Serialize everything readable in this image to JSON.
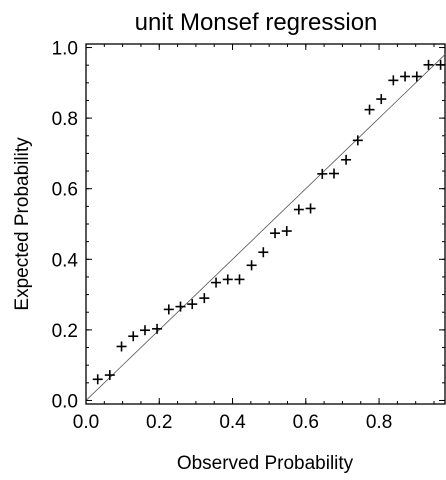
{
  "chart_data": {
    "type": "scatter",
    "title": "unit Monsef regression",
    "xlabel": "Observed Probability",
    "ylabel": "Expected Probability",
    "xlim": [
      0.0,
      0.98
    ],
    "ylim": [
      -0.01,
      1.01
    ],
    "xticks": [
      "0.0",
      "0.2",
      "0.4",
      "0.6",
      "0.8"
    ],
    "xtick_values": [
      0.0,
      0.2,
      0.4,
      0.6,
      0.8
    ],
    "yticks": [
      "0.0",
      "0.2",
      "0.4",
      "0.6",
      "0.8",
      "1.0"
    ],
    "ytick_values": [
      0.0,
      0.2,
      0.4,
      0.6,
      0.8,
      1.0
    ],
    "reference_line": [
      [
        0,
        0
      ],
      [
        1,
        1
      ]
    ],
    "marker": "plus",
    "grid": false,
    "legend": false,
    "points": [
      [
        0.032,
        0.06
      ],
      [
        0.065,
        0.072
      ],
      [
        0.097,
        0.153
      ],
      [
        0.129,
        0.182
      ],
      [
        0.161,
        0.199
      ],
      [
        0.194,
        0.203
      ],
      [
        0.226,
        0.258
      ],
      [
        0.258,
        0.266
      ],
      [
        0.29,
        0.273
      ],
      [
        0.323,
        0.29
      ],
      [
        0.355,
        0.334
      ],
      [
        0.387,
        0.343
      ],
      [
        0.419,
        0.343
      ],
      [
        0.452,
        0.383
      ],
      [
        0.484,
        0.42
      ],
      [
        0.516,
        0.474
      ],
      [
        0.548,
        0.48
      ],
      [
        0.581,
        0.541
      ],
      [
        0.613,
        0.544
      ],
      [
        0.645,
        0.642
      ],
      [
        0.677,
        0.643
      ],
      [
        0.71,
        0.682
      ],
      [
        0.742,
        0.737
      ],
      [
        0.774,
        0.824
      ],
      [
        0.806,
        0.854
      ],
      [
        0.839,
        0.907
      ],
      [
        0.871,
        0.918
      ],
      [
        0.903,
        0.918
      ],
      [
        0.935,
        0.951
      ],
      [
        0.968,
        0.951
      ]
    ]
  }
}
